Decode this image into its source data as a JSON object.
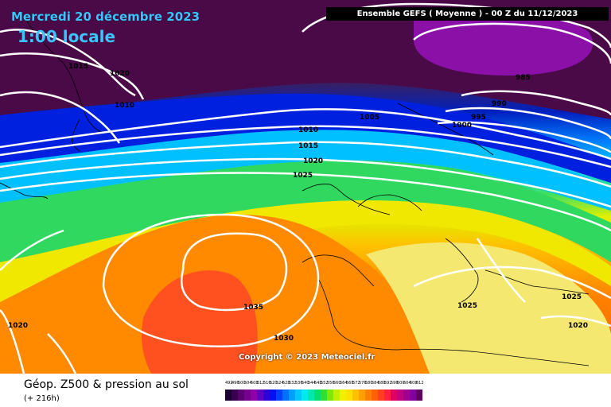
{
  "header": {
    "date": "Mercredi 20 décembre 2023",
    "local_time": "1:00 locale",
    "ensemble": "Ensemble GEFS  ( Moyenne )  -  00 Z du 11/12/2023"
  },
  "copyright": "Copyright © 2023 Meteociel.fr",
  "footer": {
    "parameter": "Géop. Z500 & pression au sol",
    "lead_time": "(+ 216h)"
  },
  "scale": {
    "labels": [
      "492",
      "496",
      "500",
      "504",
      "508",
      "512",
      "516",
      "520",
      "524",
      "528",
      "532",
      "536",
      "540",
      "544",
      "548",
      "552",
      "556",
      "560",
      "564",
      "568",
      "572",
      "576",
      "580",
      "584",
      "588",
      "592",
      "596",
      "600",
      "604",
      "608",
      "612"
    ],
    "colors": [
      "#1a0033",
      "#3a0050",
      "#5a0070",
      "#780090",
      "#9000a8",
      "#6000c0",
      "#3000d8",
      "#0010f0",
      "#0040ff",
      "#0070ff",
      "#00a0ff",
      "#00c8ff",
      "#00e8f0",
      "#00e8b0",
      "#00e070",
      "#30e030",
      "#80e800",
      "#c0f000",
      "#f0f000",
      "#ffe000",
      "#ffc000",
      "#ffa000",
      "#ff8000",
      "#ff6000",
      "#ff4020",
      "#ff2040",
      "#e00060",
      "#c00080",
      "#a00090",
      "#8000a0",
      "#600060"
    ]
  },
  "isobars": [
    {
      "label": "1015"
    },
    {
      "label": "1020"
    },
    {
      "label": "1010"
    },
    {
      "label": "1005"
    },
    {
      "label": "985"
    },
    {
      "label": "990"
    },
    {
      "label": "995"
    },
    {
      "label": "1000"
    },
    {
      "label": "1010"
    },
    {
      "label": "1015"
    },
    {
      "label": "1020"
    },
    {
      "label": "1025"
    },
    {
      "label": "1035"
    },
    {
      "label": "1030"
    },
    {
      "label": "1025"
    },
    {
      "label": "1025"
    },
    {
      "label": "1020"
    },
    {
      "label": "1020"
    }
  ]
}
